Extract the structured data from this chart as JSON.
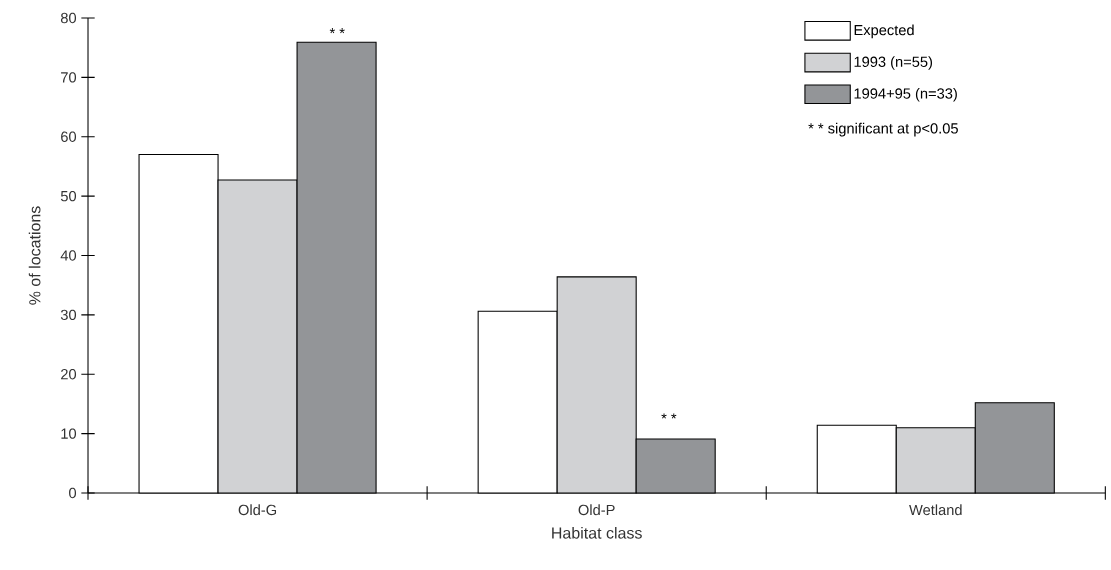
{
  "chart_data": {
    "type": "bar",
    "categories": [
      "Old-G",
      "Old-P",
      "Wetland"
    ],
    "series": [
      {
        "name": "Expected",
        "color": "#ffffff",
        "values": [
          57,
          30.6,
          11.4
        ]
      },
      {
        "name": "1993 (n=55)",
        "color": "#d1d2d4",
        "values": [
          52.7,
          36.4,
          11
        ]
      },
      {
        "name": "1994+95 (n=33)",
        "color": "#939598",
        "values": [
          75.9,
          9.1,
          15.2
        ]
      }
    ],
    "xlabel": "Habitat class",
    "ylabel": "% of locations",
    "ylim": [
      0,
      80
    ],
    "yticks": [
      0,
      10,
      20,
      30,
      40,
      50,
      60,
      70,
      80
    ],
    "annotations": [
      "* *",
      "* *",
      "* *  significant at p<0.05"
    ],
    "legend": "top right",
    "grid": false
  }
}
